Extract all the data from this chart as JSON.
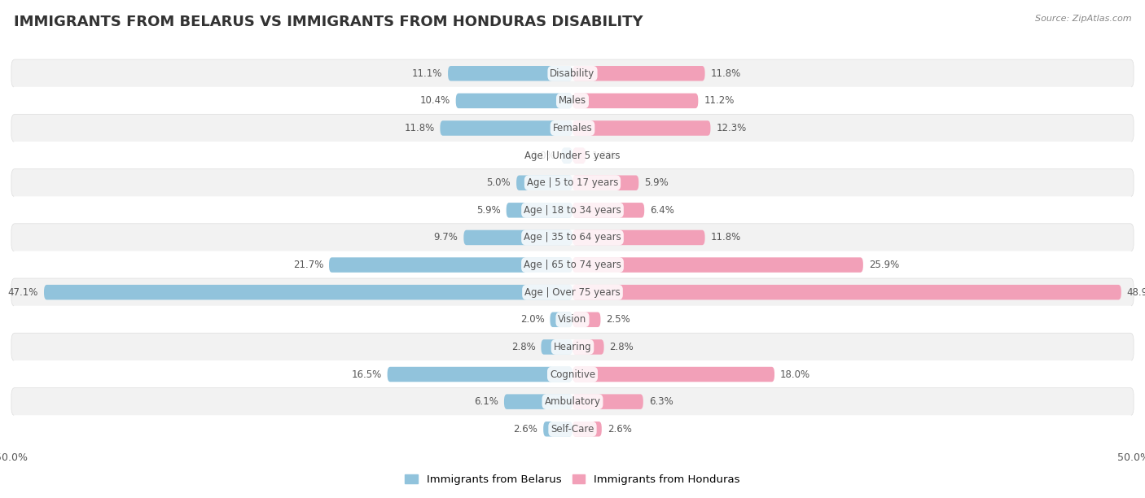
{
  "title": "IMMIGRANTS FROM BELARUS VS IMMIGRANTS FROM HONDURAS DISABILITY",
  "source": "Source: ZipAtlas.com",
  "categories": [
    "Disability",
    "Males",
    "Females",
    "Age | Under 5 years",
    "Age | 5 to 17 years",
    "Age | 18 to 34 years",
    "Age | 35 to 64 years",
    "Age | 65 to 74 years",
    "Age | Over 75 years",
    "Vision",
    "Hearing",
    "Cognitive",
    "Ambulatory",
    "Self-Care"
  ],
  "belarus_values": [
    11.1,
    10.4,
    11.8,
    1.0,
    5.0,
    5.9,
    9.7,
    21.7,
    47.1,
    2.0,
    2.8,
    16.5,
    6.1,
    2.6
  ],
  "honduras_values": [
    11.8,
    11.2,
    12.3,
    1.2,
    5.9,
    6.4,
    11.8,
    25.9,
    48.9,
    2.5,
    2.8,
    18.0,
    6.3,
    2.6
  ],
  "belarus_color": "#91C3DC",
  "honduras_color": "#F2A0B8",
  "belarus_color_dark": "#5B9EC9",
  "honduras_color_dark": "#E8638A",
  "belarus_label": "Immigrants from Belarus",
  "honduras_label": "Immigrants from Honduras",
  "axis_max": 50.0,
  "bg_color": "#ffffff",
  "row_bg_odd": "#f2f2f2",
  "row_bg_even": "#ffffff",
  "bar_height": 0.55,
  "title_fontsize": 13,
  "label_fontsize": 8.5,
  "value_fontsize": 8.5
}
